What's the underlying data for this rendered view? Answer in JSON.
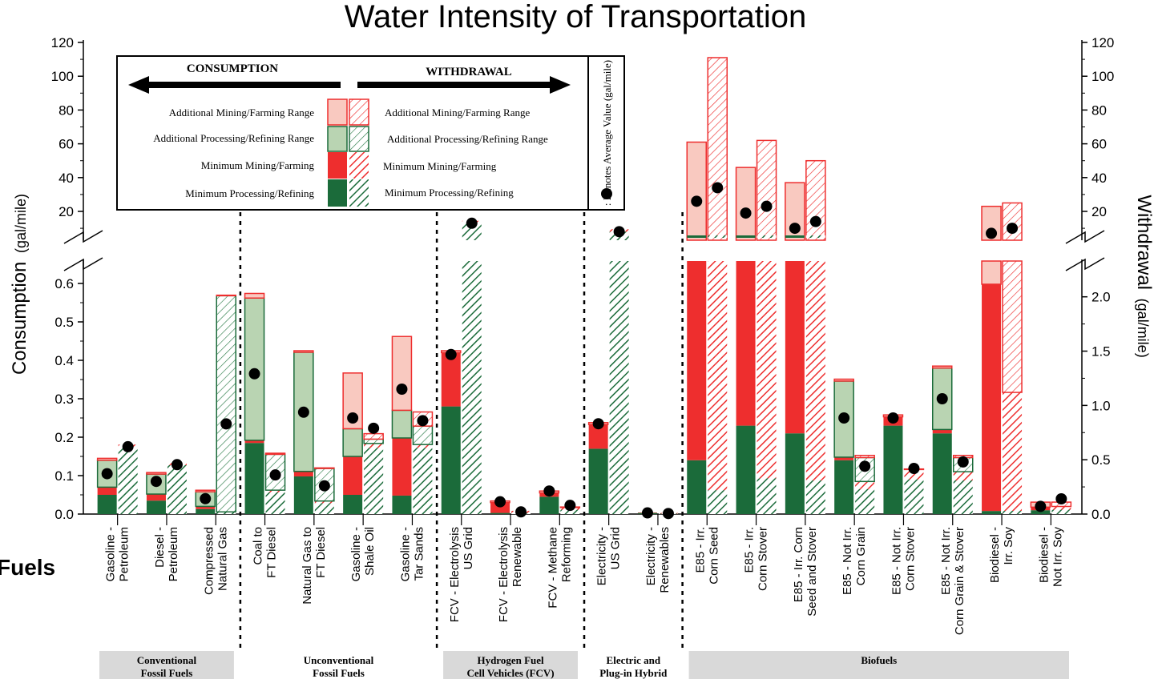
{
  "chart_data": {
    "type": "bar",
    "title": "Water Intensity of Transportation",
    "ylabel_left": "Consumption",
    "ylabel_left_unit": "(gal/mile)",
    "ylabel_right": "Withdrawal",
    "ylabel_right_unit": "(gal/mile)",
    "xlabel": "Fuels",
    "left_axis": {
      "lower_range": [
        0,
        0.65
      ],
      "lower_ticks": [
        "0.0",
        "0.1",
        "0.2",
        "0.3",
        "0.4",
        "0.5",
        "0.6"
      ],
      "upper_ticks": [
        "20",
        "40",
        "60",
        "80",
        "100",
        "120"
      ]
    },
    "right_axis": {
      "lower_range": [
        0,
        2.3
      ],
      "lower_ticks": [
        "0.0",
        "0.5",
        "1.0",
        "1.5",
        "2.0"
      ],
      "upper_ticks": [
        "20",
        "40",
        "60",
        "80",
        "100",
        "120"
      ]
    },
    "legend": {
      "consumption_label": "CONSUMPTION",
      "withdrawal_label": "WITHDRAWAL",
      "rows": [
        {
          "consumption": "Additional Mining/Farming Range",
          "withdrawal": "Additional Mining/Farming Range"
        },
        {
          "consumption": "Additional Processing/Refining Range",
          "withdrawal": "Additional Processing/Refining Range"
        },
        {
          "consumption": "Minimum Mining/Farming",
          "withdrawal": "Minimum Mining/Farming"
        },
        {
          "consumption": "Minimum Processing/Refining",
          "withdrawal": "Minimum Processing/Refining"
        }
      ],
      "dot_note": ": Denotes Average Value (gal/mile)"
    },
    "colors": {
      "proc": "#1b6b3a",
      "proc_range": "#b9d4b2",
      "mining": "#ee2e2e",
      "mining_range": "#f9c9c0"
    },
    "groups": [
      {
        "label_line1": "Conventional",
        "label_line2": "Fossil Fuels",
        "shaded": true
      },
      {
        "label_line1": "Unconventional",
        "label_line2": "Fossil Fuels",
        "shaded": false
      },
      {
        "label_line1": "Hydrogen Fuel",
        "label_line2": "Cell Vehicles (FCV)",
        "shaded": true
      },
      {
        "label_line1": "Electric and",
        "label_line2": "Plug-in Hybrid",
        "shaded": false
      },
      {
        "label_line1": "Biofuels",
        "label_line2": "",
        "shaded": true
      }
    ],
    "fuels": [
      {
        "name": [
          "Gasoline -",
          "Petroleum"
        ],
        "consumption": {
          "proc": 0.05,
          "mining": 0.02,
          "proc_range": 0.07,
          "mining_range": 0.005,
          "avg": 0.105
        },
        "withdrawal": {
          "proc": 0.62,
          "mining": 0.02,
          "proc_range": 0.0,
          "mining_range": 0.0,
          "avg": 0.62
        }
      },
      {
        "name": [
          "Diesel -",
          "Petroleum"
        ],
        "consumption": {
          "proc": 0.035,
          "mining": 0.017,
          "proc_range": 0.052,
          "mining_range": 0.004,
          "avg": 0.085
        },
        "withdrawal": {
          "proc": 0.45,
          "mining": 0.02,
          "proc_range": 0.0,
          "mining_range": 0.0,
          "avg": 0.455
        }
      },
      {
        "name": [
          "Compressed",
          "Natural Gas"
        ],
        "consumption": {
          "proc": 0.013,
          "mining": 0.007,
          "proc_range": 0.038,
          "mining_range": 0.004,
          "avg": 0.04
        },
        "withdrawal": {
          "proc": 0.02,
          "mining": 0.0,
          "proc_range": 1.99,
          "mining_range": 0.005,
          "avg": 0.83
        }
      },
      {
        "name": [
          "Coal to",
          "FT Diesel"
        ],
        "consumption": {
          "proc": 0.185,
          "mining": 0.007,
          "proc_range": 0.37,
          "mining_range": 0.012,
          "avg": 0.365
        },
        "withdrawal": {
          "proc": 0.2,
          "mining": 0.02,
          "proc_range": 0.33,
          "mining_range": 0.01,
          "avg": 0.36
        }
      },
      {
        "name": [
          "Natural Gas to",
          "FT Diesel"
        ],
        "consumption": {
          "proc": 0.098,
          "mining": 0.013,
          "proc_range": 0.31,
          "mining_range": 0.004,
          "avg": 0.265
        },
        "withdrawal": {
          "proc": 0.1,
          "mining": 0.02,
          "proc_range": 0.3,
          "mining_range": 0.005,
          "avg": 0.26
        }
      },
      {
        "name": [
          "Gasoline -",
          "Shale Oil"
        ],
        "consumption": {
          "proc": 0.05,
          "mining": 0.1,
          "proc_range": 0.072,
          "mining_range": 0.145,
          "avg": 0.25
        },
        "withdrawal": {
          "proc": 0.61,
          "mining": 0.04,
          "proc_range": 0.04,
          "mining_range": 0.05,
          "avg": 0.79
        }
      },
      {
        "name": [
          "Gasoline -",
          "Tar Sands"
        ],
        "consumption": {
          "proc": 0.048,
          "mining": 0.15,
          "proc_range": 0.072,
          "mining_range": 0.192,
          "avg": 0.325
        },
        "withdrawal": {
          "proc": 0.61,
          "mining": 0.03,
          "proc_range": 0.17,
          "mining_range": 0.13,
          "avg": 0.86
        }
      },
      {
        "name": [
          "FCV - Electrolysis",
          "US Grid"
        ],
        "consumption": {
          "proc": 0.28,
          "mining": 0.14,
          "proc_range": 0.0,
          "mining_range": 0.005,
          "avg": 0.415
        },
        "withdrawal": {
          "proc": 13.0,
          "mining": 0.5,
          "proc_range": 0.0,
          "mining_range": 0.0,
          "avg": 13.0
        }
      },
      {
        "name": [
          "FCV - Electrolysis",
          "Renewable"
        ],
        "consumption": {
          "proc": 0.003,
          "mining": 0.027,
          "proc_range": 0.0,
          "mining_range": 0.004,
          "avg": 0.032
        },
        "withdrawal": {
          "proc": 0.01,
          "mining": 0.02,
          "proc_range": 0.0,
          "mining_range": 0.0,
          "avg": 0.02
        }
      },
      {
        "name": [
          "FCV - Methane",
          "Reforming"
        ],
        "consumption": {
          "proc": 0.045,
          "mining": 0.01,
          "proc_range": 0.0,
          "mining_range": 0.005,
          "avg": 0.06
        },
        "withdrawal": {
          "proc": 0.04,
          "mining": 0.02,
          "proc_range": 0.0,
          "mining_range": 0.005,
          "avg": 0.08
        }
      },
      {
        "name": [
          "Electricity -",
          "US Grid"
        ],
        "consumption": {
          "proc": 0.17,
          "mining": 0.063,
          "proc_range": 0.0,
          "mining_range": 0.005,
          "avg": 0.235
        },
        "withdrawal": {
          "proc": 8.0,
          "mining": 0.5,
          "proc_range": 0.0,
          "mining_range": 0.0,
          "avg": 8.0
        }
      },
      {
        "name": [
          "Electricity -",
          "Renewables"
        ],
        "consumption": {
          "proc": 0.003,
          "mining": 0.001,
          "proc_range": 0.0,
          "mining_range": 0.0,
          "avg": 0.003
        },
        "withdrawal": {
          "proc": 0.005,
          "mining": 0.005,
          "proc_range": 0.0,
          "mining_range": 0.0,
          "avg": 0.005
        }
      },
      {
        "name": [
          "E85 - Irr.",
          "Corn Seed"
        ],
        "consumption": {
          "proc": 0.14,
          "mining": 61.0,
          "proc_range": 0.0,
          "mining_range": 0.0,
          "avg": 26.0
        },
        "withdrawal": {
          "proc": 0.22,
          "mining": 111.0,
          "proc_range": 0.0,
          "mining_range": 0.0,
          "avg": 34.0
        }
      },
      {
        "name": [
          "E85 - Irr.",
          "Corn Stover"
        ],
        "consumption": {
          "proc": 0.23,
          "mining": 46.0,
          "proc_range": 0.0,
          "mining_range": 0.0,
          "avg": 19.0
        },
        "withdrawal": {
          "proc": 0.33,
          "mining": 62.0,
          "proc_range": 0.0,
          "mining_range": 0.0,
          "avg": 23.0
        }
      },
      {
        "name": [
          "E85 - Irr. Corn",
          "Seed and Stover"
        ],
        "consumption": {
          "proc": 0.21,
          "mining": 37.0,
          "proc_range": 0.0,
          "mining_range": 0.0,
          "avg": 10.0
        },
        "withdrawal": {
          "proc": 0.31,
          "mining": 50.0,
          "proc_range": 0.0,
          "mining_range": 0.0,
          "avg": 14.0
        }
      },
      {
        "name": [
          "E85 - Not Irr.",
          "Corn Grain"
        ],
        "consumption": {
          "proc": 0.14,
          "mining": 0.008,
          "proc_range": 0.198,
          "mining_range": 0.005,
          "avg": 0.25
        },
        "withdrawal": {
          "proc": 0.23,
          "mining": 0.07,
          "proc_range": 0.22,
          "mining_range": 0.02,
          "avg": 0.44
        }
      },
      {
        "name": [
          "E85 - Not Irr.",
          "Corn Stover"
        ],
        "consumption": {
          "proc": 0.23,
          "mining": 0.023,
          "proc_range": 0.0,
          "mining_range": 0.005,
          "avg": 0.25
        },
        "withdrawal": {
          "proc": 0.32,
          "mining": 0.09,
          "proc_range": 0.0,
          "mining_range": 0.005,
          "avg": 0.42
        }
      },
      {
        "name": [
          "E85 - Not Irr.",
          "Corn Grain & Stover"
        ],
        "consumption": {
          "proc": 0.21,
          "mining": 0.01,
          "proc_range": 0.16,
          "mining_range": 0.005,
          "avg": 0.3
        },
        "withdrawal": {
          "proc": 0.31,
          "mining": 0.08,
          "proc_range": 0.13,
          "mining_range": 0.02,
          "avg": 0.48
        }
      },
      {
        "name": [
          "Biodiesel -",
          "Irr. Soy"
        ],
        "consumption": {
          "proc": 0.008,
          "mining": 0.59,
          "proc_range": 0.0,
          "mining_range": 23.0,
          "avg": 7.0
        },
        "withdrawal": {
          "proc": 0.03,
          "mining": 1.09,
          "proc_range": 0.0,
          "mining_range": 25.0,
          "avg": 10.0
        }
      },
      {
        "name": [
          "Biodiesel -",
          "Not Irr. Soy"
        ],
        "consumption": {
          "proc": 0.01,
          "mining": 0.008,
          "proc_range": 0.0,
          "mining_range": 0.013,
          "avg": 0.02
        },
        "withdrawal": {
          "proc": 0.04,
          "mining": 0.03,
          "proc_range": 0.0,
          "mining_range": 0.04,
          "avg": 0.14
        }
      }
    ]
  }
}
